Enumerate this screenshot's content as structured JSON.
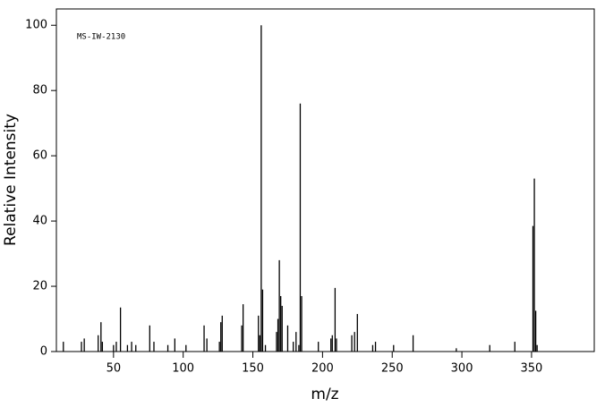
{
  "chart_data": {
    "type": "bar",
    "annotation": "MS-IW-2130",
    "x_label": "m/z",
    "y_label": "Relative Intensity",
    "x": [
      14,
      27,
      29,
      39,
      41,
      42,
      50,
      52,
      55,
      60,
      63,
      66,
      76,
      79,
      89,
      94,
      102,
      115,
      117,
      126,
      127,
      128,
      142,
      143,
      154,
      155,
      156,
      157,
      159,
      167,
      168,
      169,
      170,
      171,
      175,
      179,
      181,
      183,
      184,
      185,
      197,
      206,
      207,
      209,
      210,
      221,
      223,
      225,
      236,
      238,
      251,
      265,
      296,
      320,
      338,
      351,
      352,
      353,
      354
    ],
    "values": [
      3,
      3,
      4,
      5,
      9,
      3,
      2,
      3,
      13.5,
      2,
      3,
      2,
      8,
      3,
      2,
      4,
      2,
      8,
      4,
      3,
      9,
      11,
      8,
      14.5,
      11,
      5,
      100,
      19,
      2,
      6,
      10,
      28,
      17,
      14,
      8,
      3,
      6,
      2,
      76,
      17,
      3,
      4,
      5,
      19.5,
      4,
      5,
      6,
      11.5,
      2,
      3,
      2,
      5,
      1,
      2,
      3,
      38.5,
      53,
      12.5,
      2
    ],
    "color": "#000000",
    "xlim": [
      9,
      395
    ],
    "ylim": [
      0,
      105
    ],
    "xticks": [
      50,
      100,
      150,
      200,
      250,
      300,
      350
    ],
    "yticks": [
      0,
      20,
      40,
      60,
      80,
      100
    ]
  }
}
